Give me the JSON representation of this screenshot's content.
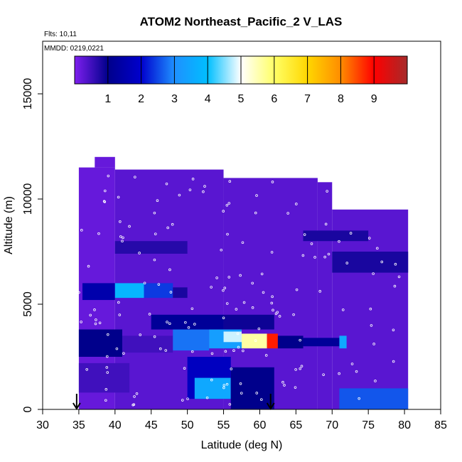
{
  "chart_data": {
    "type": "heatmap",
    "title": "ATOM2 Northeast_Pacific_2 V_LAS",
    "flights_note": "Flts: 10,11",
    "dates_note": "MMDD: 0219,0221",
    "xlabel": "Latitude (deg N)",
    "ylabel": "Altitude (m)",
    "xlim": [
      30,
      85
    ],
    "ylim": [
      0,
      17500
    ],
    "x_ticks": [
      "30",
      "35",
      "40",
      "45",
      "50",
      "55",
      "60",
      "65",
      "70",
      "75",
      "80",
      "85"
    ],
    "y_ticks": [
      "0",
      "5000",
      "10000",
      "15000"
    ],
    "colorbar": {
      "range": [
        0,
        10
      ],
      "tick_labels": [
        "1",
        "2",
        "3",
        "4",
        "5",
        "6",
        "7",
        "8",
        "9"
      ],
      "colors": [
        "#7f1fef",
        "#00008b",
        "#0000cd",
        "#1e90ff",
        "#00bfff",
        "#ffffff",
        "#ffff66",
        "#ffd700",
        "#ff8c00",
        "#ff0000",
        "#a52a2a"
      ]
    },
    "markers": [
      {
        "lat": 34.7,
        "alt": 0
      },
      {
        "lat": 61.5,
        "alt": 0
      }
    ],
    "cells": [
      {
        "lat0": 35.0,
        "lat1": 40.0,
        "alt0": 0,
        "alt1": 11500,
        "value": 0.2
      },
      {
        "lat0": 40.0,
        "lat1": 55.0,
        "alt0": 0,
        "alt1": 11400,
        "value": 0.3
      },
      {
        "lat0": 55.0,
        "lat1": 68.0,
        "alt0": 0,
        "alt1": 11000,
        "value": 0.3
      },
      {
        "lat0": 68.0,
        "lat1": 70.0,
        "alt0": 0,
        "alt1": 10800,
        "value": 0.3
      },
      {
        "lat0": 70.0,
        "lat1": 80.5,
        "alt0": 0,
        "alt1": 9500,
        "value": 0.3
      },
      {
        "lat0": 37.2,
        "lat1": 40.0,
        "alt0": 11500,
        "alt1": 12000,
        "value": 0.2
      },
      {
        "lat0": 35.0,
        "lat1": 41.0,
        "alt0": 2500,
        "alt1": 3800,
        "value": 1.0
      },
      {
        "lat0": 41.0,
        "lat1": 48.0,
        "alt0": 2700,
        "alt1": 3500,
        "value": 0.5
      },
      {
        "lat0": 48.0,
        "lat1": 53.0,
        "alt0": 2800,
        "alt1": 3800,
        "value": 2.8
      },
      {
        "lat0": 53.0,
        "lat1": 57.5,
        "alt0": 2900,
        "alt1": 3800,
        "value": 3.3
      },
      {
        "lat0": 55.0,
        "lat1": 57.5,
        "alt0": 3200,
        "alt1": 3700,
        "value": 4.8
      },
      {
        "lat0": 57.5,
        "lat1": 61.0,
        "alt0": 2900,
        "alt1": 3600,
        "value": 5.6
      },
      {
        "lat0": 61.0,
        "lat1": 62.5,
        "alt0": 2900,
        "alt1": 3600,
        "value": 8.8
      },
      {
        "lat0": 62.5,
        "lat1": 66.0,
        "alt0": 2900,
        "alt1": 3500,
        "value": 1.0
      },
      {
        "lat0": 66.0,
        "lat1": 71.0,
        "alt0": 3000,
        "alt1": 3400,
        "value": 1.2
      },
      {
        "lat0": 71.0,
        "lat1": 72.0,
        "alt0": 2900,
        "alt1": 3500,
        "value": 3.5
      },
      {
        "lat0": 35.5,
        "lat1": 40.0,
        "alt0": 5200,
        "alt1": 6000,
        "value": 1.5
      },
      {
        "lat0": 40.0,
        "lat1": 44.0,
        "alt0": 5300,
        "alt1": 6000,
        "value": 3.8
      },
      {
        "lat0": 44.0,
        "lat1": 48.0,
        "alt0": 5300,
        "alt1": 6000,
        "value": 2.4
      },
      {
        "lat0": 48.0,
        "lat1": 50.0,
        "alt0": 5300,
        "alt1": 5800,
        "value": 0.8
      },
      {
        "lat0": 45.0,
        "lat1": 55.0,
        "alt0": 3800,
        "alt1": 4500,
        "value": 1.2
      },
      {
        "lat0": 55.0,
        "lat1": 62.0,
        "alt0": 3800,
        "alt1": 4500,
        "value": 0.9
      },
      {
        "lat0": 50.0,
        "lat1": 56.0,
        "alt0": 500,
        "alt1": 2500,
        "value": 1.8
      },
      {
        "lat0": 51.0,
        "lat1": 56.0,
        "alt0": 500,
        "alt1": 1500,
        "value": 3.5
      },
      {
        "lat0": 56.0,
        "lat1": 62.0,
        "alt0": 0,
        "alt1": 2000,
        "value": 1.0
      },
      {
        "lat0": 71.0,
        "lat1": 80.5,
        "alt0": 0,
        "alt1": 1000,
        "value": 2.6
      },
      {
        "lat0": 70.0,
        "lat1": 80.5,
        "alt0": 6500,
        "alt1": 7500,
        "value": 0.8
      },
      {
        "lat0": 66.0,
        "lat1": 75.0,
        "alt0": 8000,
        "alt1": 8500,
        "value": 0.8
      },
      {
        "lat0": 40.0,
        "lat1": 50.0,
        "alt0": 7400,
        "alt1": 8000,
        "value": 0.7
      },
      {
        "lat0": 35.0,
        "lat1": 42.0,
        "alt0": 800,
        "alt1": 2200,
        "value": 0.5
      }
    ]
  }
}
